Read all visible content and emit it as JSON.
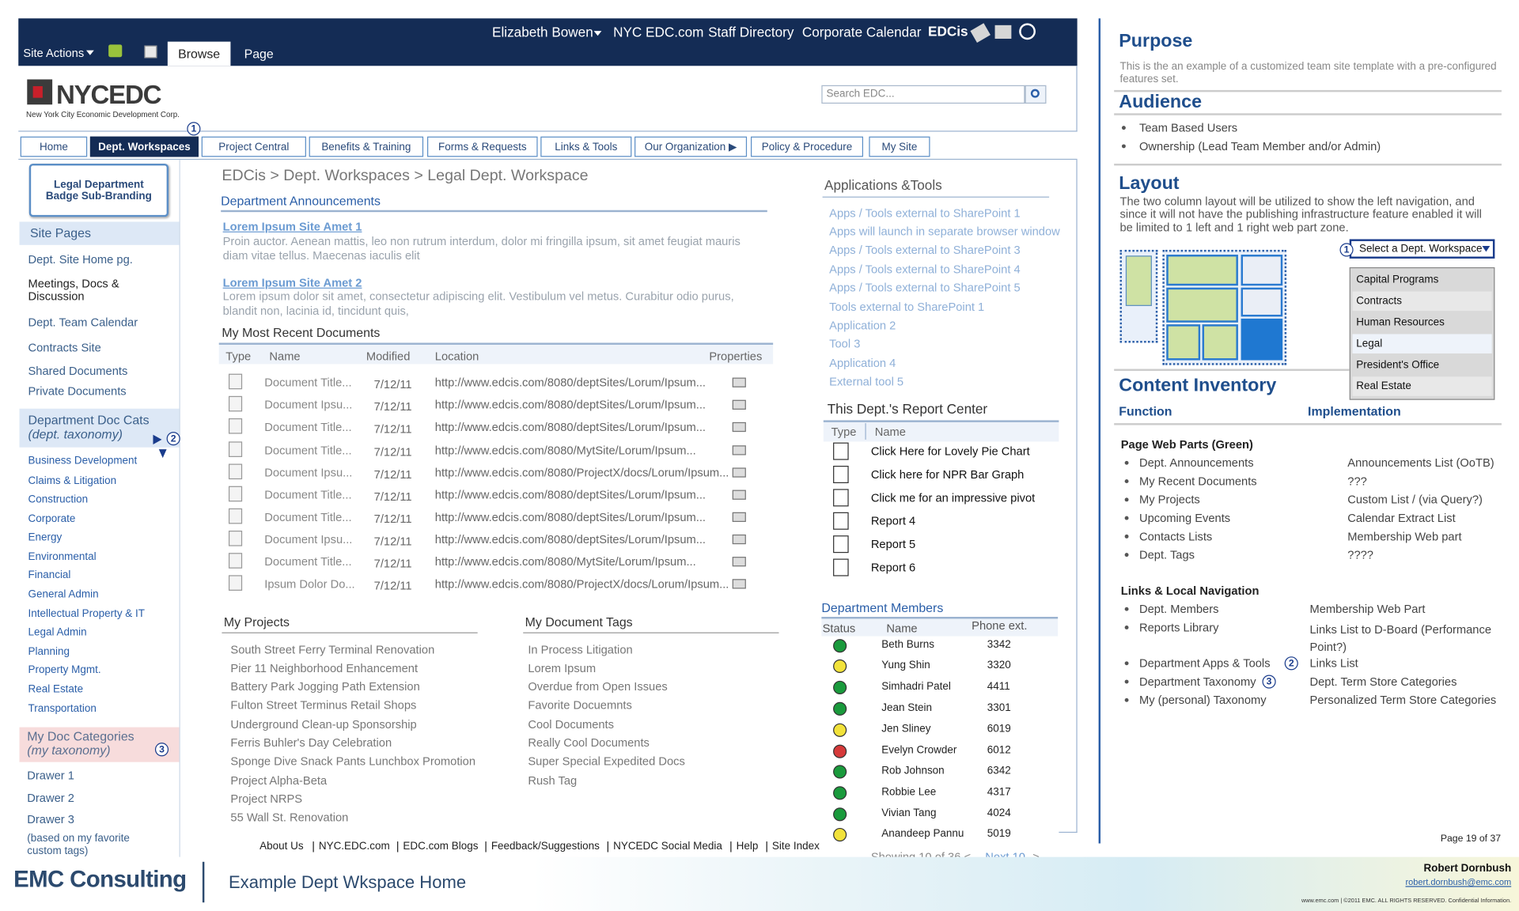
{
  "top_bar": {
    "site_actions": "Site Actions",
    "tabs": [
      "Browse",
      "Page"
    ],
    "user": "Elizabeth Bowen",
    "links": [
      "NYC EDC.com",
      "Staff Directory",
      "Corporate Calendar",
      "EDCis"
    ]
  },
  "header": {
    "logo": "NYCEDC",
    "logo_sub": "New York City Economic Development Corp.",
    "search_placeholder": "Search EDC..."
  },
  "nav": [
    "Home",
    "Dept. Workspaces",
    "Project Central",
    "Benefits & Training",
    "Forms & Requests",
    "Links & Tools",
    "Our Organization ▶",
    "Policy & Procedure",
    "My Site"
  ],
  "callouts": [
    "1",
    "2",
    "3"
  ],
  "left_nav": {
    "badge": "Legal Department Badge Sub-Branding",
    "site_pages": {
      "title": "Site Pages",
      "items": [
        "Dept. Site Home pg.",
        "Meetings, Docs & Discussion",
        "Dept. Team Calendar",
        "Contracts Site",
        "Shared Documents",
        "Private Documents"
      ]
    },
    "dept_doc_cats": {
      "title": "Department Doc Cats",
      "subtitle": "(dept. taxonomy)",
      "items": [
        "Business Development",
        "Claims & Litigation",
        "Construction",
        "Corporate",
        "Energy",
        "Environmental",
        "Financial",
        "General Admin",
        "Intellectual Property & IT",
        "Legal Admin",
        "Planning",
        "Property Mgmt.",
        "Real Estate",
        "Transportation"
      ]
    },
    "my_doc_categories": {
      "title": "My Doc Categories",
      "subtitle": "(my taxonomy)",
      "items": [
        "Drawer 1",
        "Drawer 2",
        "Drawer 3",
        "(based on my favorite custom tags)"
      ]
    }
  },
  "breadcrumb": "EDCis > Dept. Workspaces > Legal Dept. Workspace",
  "announcements": {
    "title": "Department Announcements",
    "items": [
      {
        "title": "Lorem Ipsum Site Amet 1",
        "body": "Proin auctor. Aenean mattis, leo non rutrum interdum, dolor mi fringilla ipsum, sit amet feugiat mauris diam vitae tellus. Maecenas iaculis elit"
      },
      {
        "title": "Lorem Ipsum Site Amet 2",
        "body": "Lorem ipsum dolor sit amet, consectetur adipiscing elit. Vestibulum vel metus. Curabitur odio purus, blandit non, lacinia id, tincidunt quis,"
      }
    ]
  },
  "recent_documents": {
    "title": "My Most Recent Documents",
    "columns": [
      "Type",
      "Name",
      "Modified",
      "Location",
      "Properties"
    ],
    "rows": [
      [
        "Document Title...",
        "7/12/11",
        "http://www.edcis.com/8080/deptSites/Lorum/Ipsum..."
      ],
      [
        "Document Ipsu...",
        "7/12/11",
        "http://www.edcis.com/8080/deptSites/Lorum/Ipsum..."
      ],
      [
        "Document Title...",
        "7/12/11",
        "http://www.edcis.com/8080/deptSites/Lorum/Ipsum..."
      ],
      [
        "Document Title...",
        "7/12/11",
        "http://www.edcis.com/8080/MytSite/Lorum/Ipsum..."
      ],
      [
        "Document Ipsu...",
        "7/12/11",
        "http://www.edcis.com/8080/ProjectX/docs/Lorum/Ipsum..."
      ],
      [
        "Document Title...",
        "7/12/11",
        "http://www.edcis.com/8080/deptSites/Lorum/Ipsum..."
      ],
      [
        "Document Title...",
        "7/12/11",
        "http://www.edcis.com/8080/deptSites/Lorum/Ipsum..."
      ],
      [
        "Document Ipsu...",
        "7/12/11",
        "http://www.edcis.com/8080/deptSites/Lorum/Ipsum..."
      ],
      [
        "Document Title...",
        "7/12/11",
        "http://www.edcis.com/8080/MytSite/Lorum/Ipsum..."
      ],
      [
        "Ipsum Dolor Do...",
        "7/12/11",
        "http://www.edcis.com/8080/ProjectX/docs/Lorum/Ipsum..."
      ]
    ]
  },
  "my_projects": {
    "title": "My Projects",
    "items": [
      "South Street Ferry Terminal Renovation",
      "Pier 11 Neighborhood Enhancement",
      "Battery Park Jogging Path Extension",
      "Fulton Street Terminus Retail Shops",
      "Underground Clean-up Sponsorship",
      "Ferris Buhler's Day Celebration",
      "Sponge Dive Snack Pants Lunchbox Promotion",
      "Project Alpha-Beta",
      "Project NRPS",
      "55 Wall St. Renovation"
    ]
  },
  "document_tags": {
    "title": "My Document Tags",
    "items": [
      "In Process Litigation",
      "Lorem Ipsum",
      "Overdue from Open Issues",
      "Favorite Docuemnts",
      "Cool Documents",
      "Really Cool Documents",
      "Super Special Expedited Docs",
      "Rush Tag"
    ]
  },
  "footer_links": [
    "About Us",
    "NYC.EDC.com",
    "EDC.com Blogs",
    "Feedback/Suggestions",
    "NYCEDC Social Media",
    "Help",
    "Site Index"
  ],
  "apps_tools": {
    "title": "Applications &Tools",
    "items": [
      "Apps / Tools external to SharePoint 1",
      "Apps will launch in separate browser window",
      "Apps / Tools external to SharePoint 3",
      "Apps / Tools external to SharePoint 4",
      "Apps / Tools external to SharePoint 5",
      "Tools external to SharePoint 1",
      "Application 2",
      "Tool 3",
      "Application 4",
      "External tool 5"
    ]
  },
  "report_center": {
    "title": "This Dept.'s Report Center",
    "columns": [
      "Type",
      "Name"
    ],
    "items": [
      "Click Here for Lovely Pie Chart",
      "Click here for NPR Bar Graph",
      "Click me for an impressive pivot",
      "Report 4",
      "Report 5",
      "Report 6"
    ]
  },
  "members": {
    "title": "Department Members",
    "columns": [
      "Status",
      "Name",
      "Phone ext."
    ],
    "rows": [
      {
        "status": "#1a9a3c",
        "name": "Beth Burns",
        "phone": "3342"
      },
      {
        "status": "#f2e23a",
        "name": "Yung Shin",
        "phone": "3320"
      },
      {
        "status": "#1a9a3c",
        "name": "Simhadri Patel",
        "phone": "4411"
      },
      {
        "status": "#1a9a3c",
        "name": "Jean Stein",
        "phone": "3301"
      },
      {
        "status": "#f2e23a",
        "name": "Jen Sliney",
        "phone": "6019"
      },
      {
        "status": "#d63a3a",
        "name": "Evelyn Crowder",
        "phone": "6012"
      },
      {
        "status": "#1a9a3c",
        "name": "Rob Johnson",
        "phone": "6342"
      },
      {
        "status": "#1a9a3c",
        "name": "Robbie Lee",
        "phone": "4317"
      },
      {
        "status": "#1a9a3c",
        "name": "Vivian Tang",
        "phone": "4024"
      },
      {
        "status": "#f2e23a",
        "name": "Anandeep Pannu",
        "phone": "5019"
      }
    ],
    "pager": {
      "text": "Showing 10 of 36 <",
      "next": "Next 10",
      "end": ">"
    }
  },
  "notes": {
    "purpose": {
      "title": "Purpose",
      "text": "This is the an example of a customized team site template with a pre-configured features set."
    },
    "audience": {
      "title": "Audience",
      "items": [
        "Team Based Users",
        "Ownership (Lead Team Member and/or Admin)"
      ]
    },
    "layout": {
      "title": "Layout",
      "text": "The two column layout will be utilized to show the left navigation, and since it will not have the publishing infrastructure feature enabled it will be limited to 1 left and 1 right web part zone.",
      "dropdown": "Select a Dept. Workspace",
      "options": [
        "Capital Programs",
        "Contracts",
        "Human Resources",
        "Legal",
        "President's Office",
        "Real Estate"
      ]
    },
    "content_inventory": {
      "title": "Content Inventory",
      "columns": [
        "Function",
        "Implementation"
      ],
      "groups": [
        {
          "title": "Page Web Parts (Green)",
          "rows": [
            [
              "Dept. Announcements",
              "Announcements List (OoTB)"
            ],
            [
              "My Recent Documents",
              "???"
            ],
            [
              "My Projects",
              "Custom List / (via Query?)"
            ],
            [
              "Upcoming Events",
              "Calendar Extract List"
            ],
            [
              "Contacts Lists",
              "Membership Web part"
            ],
            [
              "Dept. Tags",
              "????"
            ]
          ]
        },
        {
          "title": "Links & Local Navigation",
          "rows": [
            [
              "Dept. Members",
              "Membership Web Part"
            ],
            [
              "Reports Library",
              "Links List to D-Board (Performance Point?)"
            ],
            [
              "Department Apps & Tools",
              "Links List"
            ],
            [
              "Department Taxonomy",
              "Dept. Term Store Categories"
            ],
            [
              "My (personal) Taxonomy",
              "Personalized Term Store Categories"
            ]
          ]
        }
      ]
    },
    "page": "Page 19 of 37"
  },
  "slide_footer": {
    "brand": "EMC Consulting",
    "title": "Example Dept Wkspace Home",
    "author": "Robert Dornbush",
    "email": "robert.dornbush@emc.com",
    "legal": "www.emc.com | ©2011 EMC. ALL RIGHTS RESERVED. Confidential Information."
  }
}
